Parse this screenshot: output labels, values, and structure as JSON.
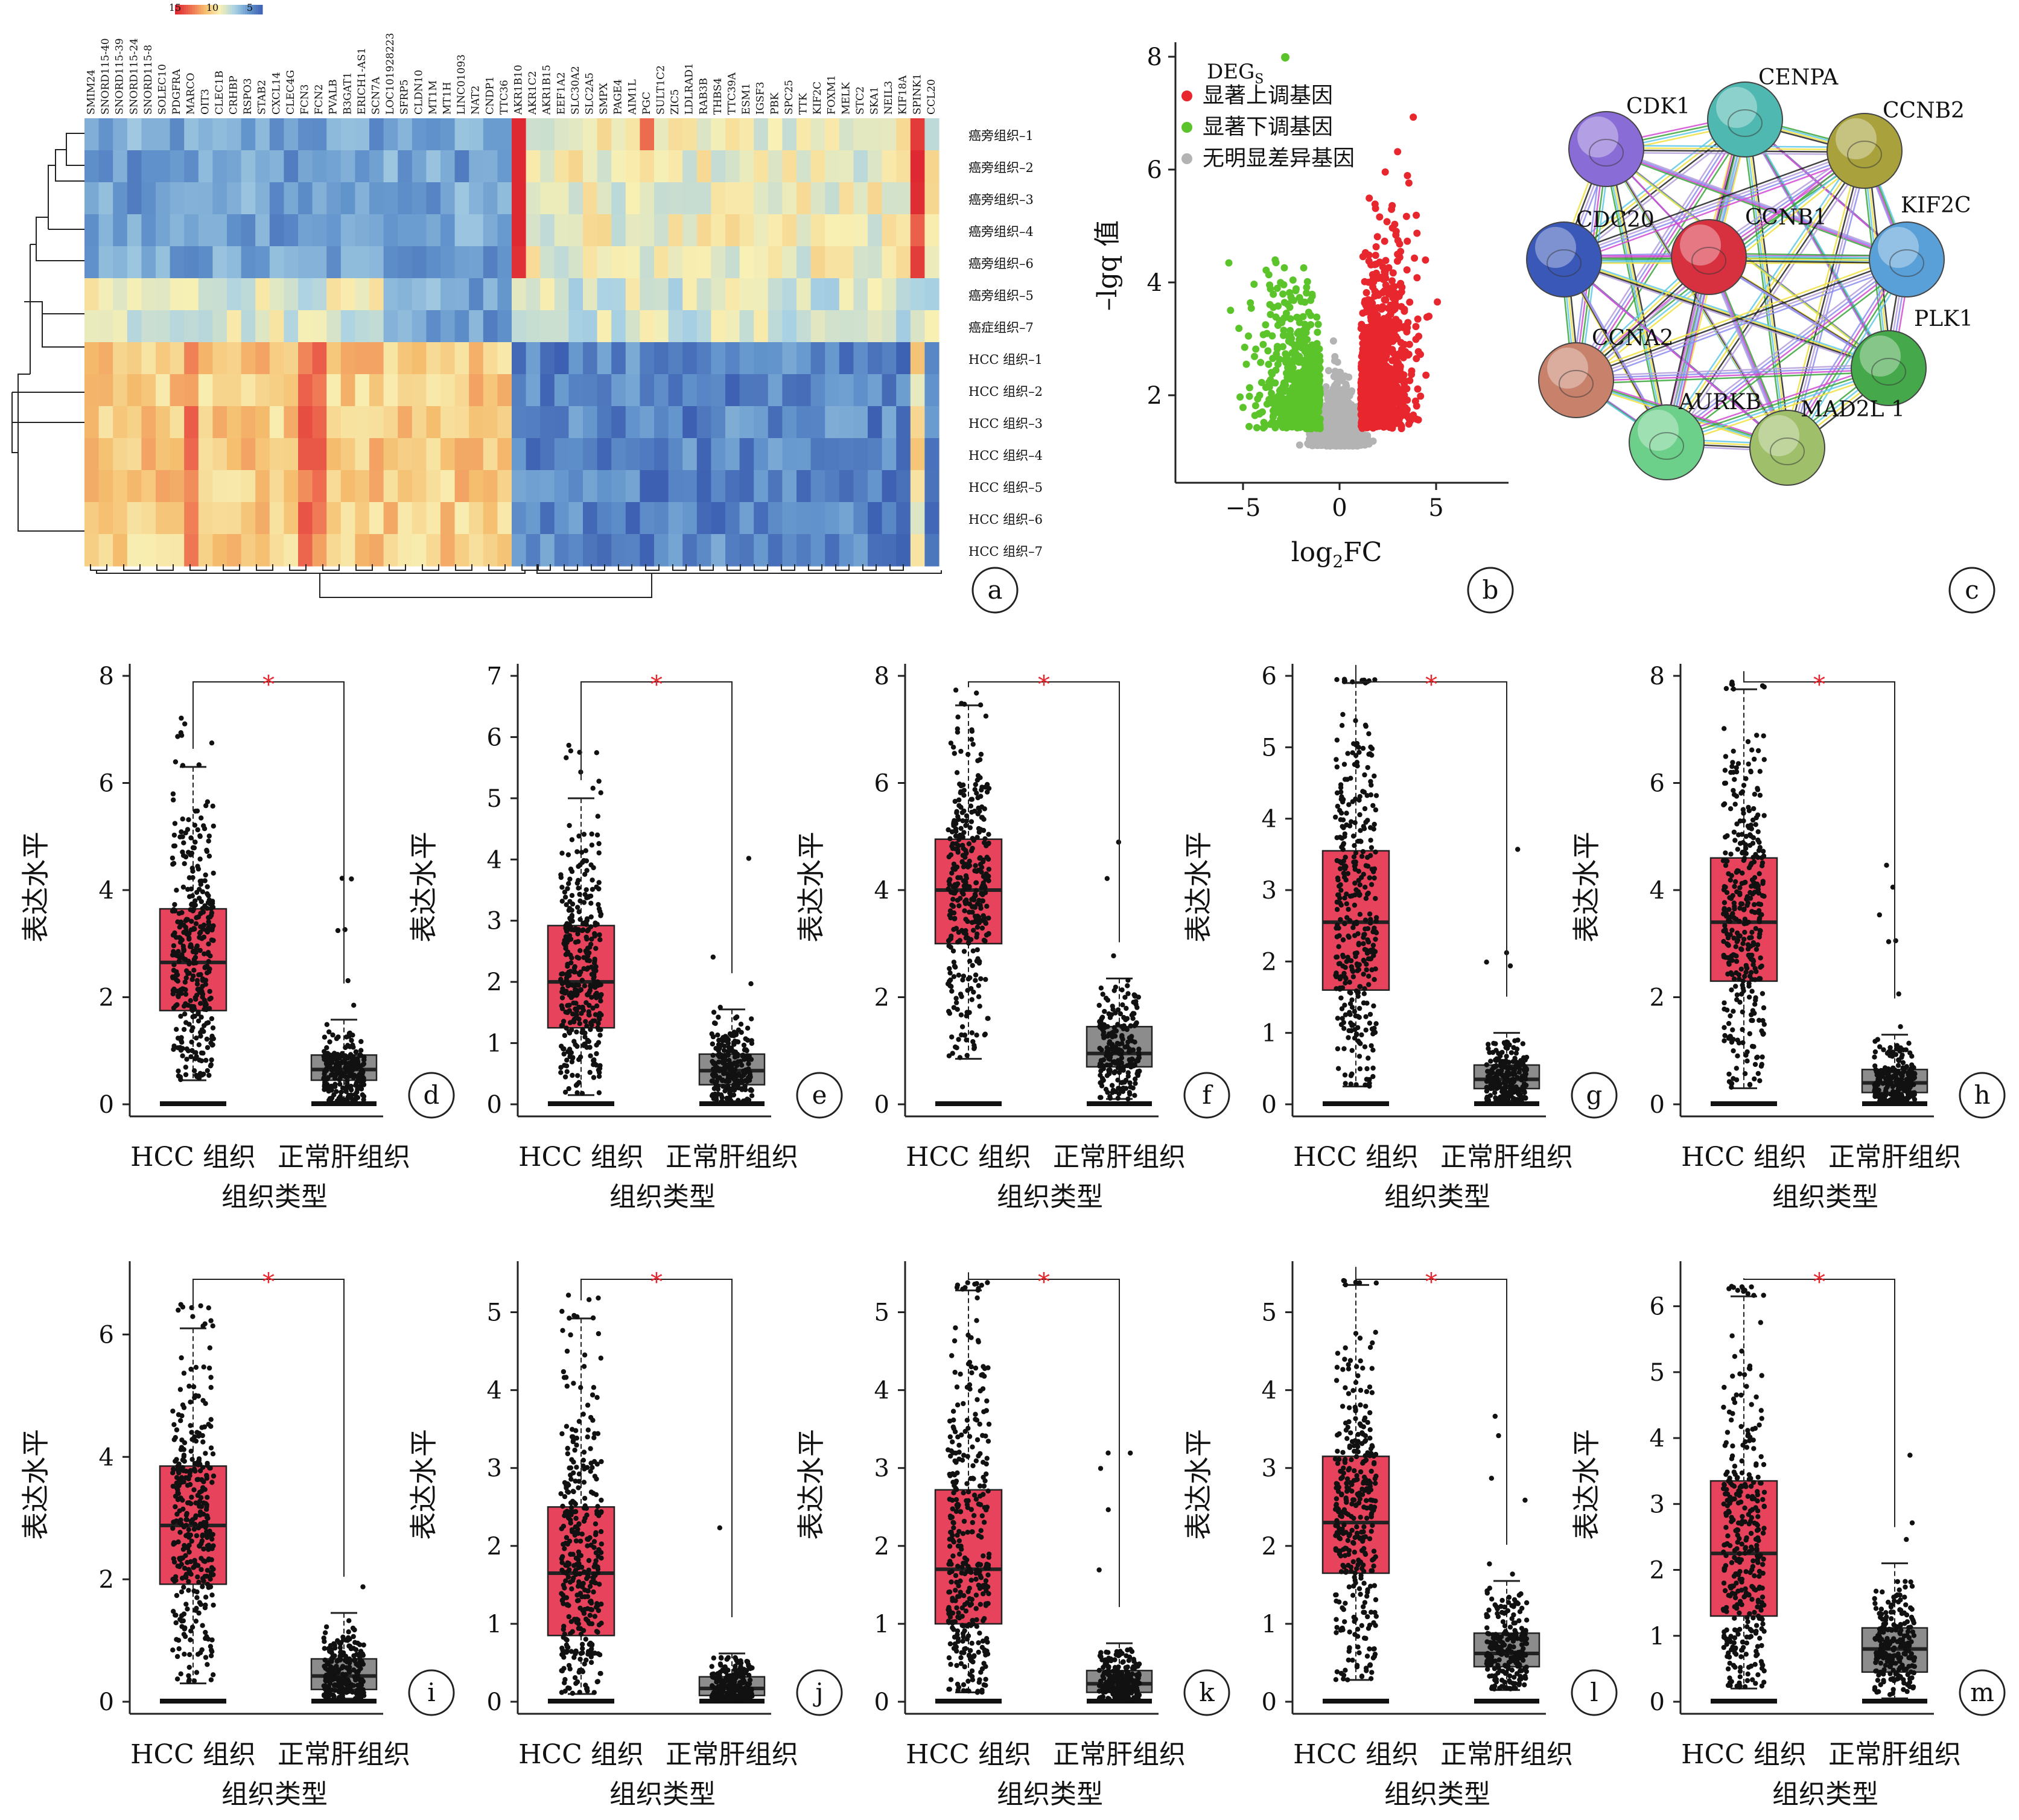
{
  "figure": {
    "panel_letters": [
      "a",
      "b",
      "c",
      "d",
      "e",
      "f",
      "g",
      "h",
      "i",
      "j",
      "k",
      "l",
      "m"
    ]
  },
  "heatmap": {
    "colorbar_ticks": [
      "15",
      "10",
      "5"
    ],
    "genes": [
      "SMIM24",
      "SNORD115-40",
      "SNORD115-39",
      "SNORD115-24",
      "SNORD115-8",
      "SOLEC10",
      "PDGFRA",
      "MARCO",
      "OIT3",
      "CLEC1B",
      "CRHBP",
      "RSPO3",
      "STAB2",
      "CXCL14",
      "CLEC4G",
      "FCN3",
      "FCN2",
      "PVALB",
      "B3GAT1",
      "ERICH1-AS1",
      "SCN7A",
      "LOC101928223",
      "SFRP5",
      "CLDN10",
      "MT1M",
      "MT1H",
      "LINC01093",
      "NAT2",
      "CNDP1",
      "TTC36",
      "AKR1B10",
      "AKR1C2",
      "AKR1B15",
      "EEF1A2",
      "SLC30A2",
      "SLC2A5",
      "SMPX",
      "PAGE4",
      "AIM1L",
      "PGC",
      "SULT1C2",
      "ZIC5",
      "LDLRAD1",
      "RAB3B",
      "THBS4",
      "TTC39A",
      "ESM1",
      "IGSF3",
      "PBK",
      "SPC25",
      "TTK",
      "KIF2C",
      "FOXM1",
      "MELK",
      "STC2",
      "SKA1",
      "NEIL3",
      "KIF18A",
      "SPINK1",
      "CCL20"
    ],
    "samples": [
      "癌旁组织–1",
      "癌旁组织–2",
      "癌旁组织–3",
      "癌旁组织–4",
      "癌旁组织–6",
      "癌旁组织–5",
      "癌症组织–7",
      "HCC 组织–1",
      "HCC 组织–2",
      "HCC 组织–3",
      "HCC 组织–4",
      "HCC 组织–5",
      "HCC 组织–6",
      "HCC 组织–7"
    ]
  },
  "volcano": {
    "legend_title": "DEG",
    "legend_title_sub": "S",
    "legend_items": [
      {
        "label": "显著上调基因",
        "color": "#e8262d"
      },
      {
        "label": "显著下调基因",
        "color": "#5cc42b"
      },
      {
        "label": "无明显差异基因",
        "color": "#b3b3b3"
      }
    ],
    "xlabel_main": "log",
    "xlabel_sub": "2",
    "xlabel_tail": "FC",
    "ylabel": "–lgq 值",
    "x_ticks": [
      "−5",
      "0",
      "5"
    ],
    "y_ticks": [
      "2",
      "4",
      "6",
      "8"
    ]
  },
  "network": {
    "nodes": [
      {
        "name": "CENPA",
        "color": "#4fb8b0"
      },
      {
        "name": "CDK1",
        "color": "#8a6cd6"
      },
      {
        "name": "CCNB2",
        "color": "#a8a13c"
      },
      {
        "name": "CDC20",
        "color": "#3a58b8"
      },
      {
        "name": "CCNB1",
        "color": "#d7303f"
      },
      {
        "name": "KIF2C",
        "color": "#5aa0d8"
      },
      {
        "name": "CCNA2",
        "color": "#c8826b"
      },
      {
        "name": "PLK1",
        "color": "#45a84a"
      },
      {
        "name": "AURKB",
        "color": "#6cd08a"
      },
      {
        "name": "MAD2L 1",
        "color": "#9fbf6a"
      }
    ]
  },
  "boxplots_common": {
    "ylabel": "表达水平",
    "xlabel": "组织类型",
    "categories": [
      "HCC 组织",
      "正常肝组织"
    ],
    "significance": "*",
    "hcc_color": "#e8435c",
    "normal_color": "#8c8c8c"
  },
  "chart_data": [
    {
      "type": "heatmap",
      "rows": 14,
      "cols": 60,
      "colorbar": [
        15,
        10,
        5
      ]
    },
    {
      "type": "scatter",
      "name": "volcano",
      "xlim": [
        -7,
        8
      ],
      "ylim": [
        1,
        8
      ]
    },
    {
      "type": "box",
      "panel": "d",
      "yticks": [
        0,
        2,
        4,
        6,
        8
      ],
      "ymax": 8,
      "HCC": {
        "q1": 1.75,
        "median": 2.65,
        "q3": 3.65,
        "whisker_low": 0.45,
        "whisker_high": 6.3
      },
      "normal": {
        "q1": 0.45,
        "median": 0.65,
        "q3": 0.92,
        "whisker_low": 0.05,
        "whisker_high": 1.58
      }
    },
    {
      "type": "box",
      "panel": "e",
      "yticks": [
        0,
        1,
        2,
        3,
        4,
        5,
        6,
        7
      ],
      "ymax": 7,
      "HCC": {
        "q1": 1.25,
        "median": 2.0,
        "q3": 2.92,
        "whisker_low": 0.15,
        "whisker_high": 5.0
      },
      "normal": {
        "q1": 0.32,
        "median": 0.55,
        "q3": 0.82,
        "whisker_low": 0.05,
        "whisker_high": 1.55
      }
    },
    {
      "type": "box",
      "panel": "f",
      "yticks": [
        0,
        2,
        4,
        6,
        8
      ],
      "ymax": 8,
      "HCC": {
        "q1": 3.0,
        "median": 4.0,
        "q3": 4.95,
        "whisker_low": 0.85,
        "whisker_high": 7.45
      },
      "normal": {
        "q1": 0.7,
        "median": 0.95,
        "q3": 1.45,
        "whisker_low": 0.1,
        "whisker_high": 2.35
      }
    },
    {
      "type": "box",
      "panel": "g",
      "yticks": [
        0,
        1,
        2,
        3,
        4,
        5,
        6
      ],
      "ymax": 6,
      "HCC": {
        "q1": 1.6,
        "median": 2.55,
        "q3": 3.55,
        "whisker_low": 0.25,
        "whisker_high": 5.9
      },
      "normal": {
        "q1": 0.22,
        "median": 0.35,
        "q3": 0.55,
        "whisker_low": 0.05,
        "whisker_high": 1.0
      }
    },
    {
      "type": "box",
      "panel": "h",
      "yticks": [
        0,
        2,
        4,
        6,
        8
      ],
      "ymax": 8,
      "HCC": {
        "q1": 2.3,
        "median": 3.4,
        "q3": 4.6,
        "whisker_low": 0.3,
        "whisker_high": 7.75
      },
      "normal": {
        "q1": 0.22,
        "median": 0.4,
        "q3": 0.65,
        "whisker_low": 0.05,
        "whisker_high": 1.3
      }
    },
    {
      "type": "box",
      "panel": "i",
      "yticks": [
        0,
        2,
        4,
        6
      ],
      "ymax": 7,
      "HCC": {
        "q1": 1.92,
        "median": 2.88,
        "q3": 3.85,
        "whisker_low": 0.3,
        "whisker_high": 6.1
      },
      "normal": {
        "q1": 0.2,
        "median": 0.42,
        "q3": 0.7,
        "whisker_low": 0.05,
        "whisker_high": 1.45
      }
    },
    {
      "type": "box",
      "panel": "j",
      "yticks": [
        0,
        1,
        2,
        3,
        4,
        5
      ],
      "ymax": 5.5,
      "HCC": {
        "q1": 0.85,
        "median": 1.65,
        "q3": 2.5,
        "whisker_low": 0.1,
        "whisker_high": 4.92
      },
      "normal": {
        "q1": 0.08,
        "median": 0.17,
        "q3": 0.32,
        "whisker_low": 0.02,
        "whisker_high": 0.62
      }
    },
    {
      "type": "box",
      "panel": "k",
      "yticks": [
        0,
        1,
        2,
        3,
        4,
        5
      ],
      "ymax": 5.5,
      "HCC": {
        "q1": 1.0,
        "median": 1.7,
        "q3": 2.72,
        "whisker_low": 0.12,
        "whisker_high": 5.28
      },
      "normal": {
        "q1": 0.12,
        "median": 0.23,
        "q3": 0.4,
        "whisker_low": 0.02,
        "whisker_high": 0.75
      }
    },
    {
      "type": "box",
      "panel": "l",
      "yticks": [
        0,
        1,
        2,
        3,
        4,
        5
      ],
      "ymax": 5.5,
      "HCC": {
        "q1": 1.65,
        "median": 2.3,
        "q3": 3.15,
        "whisker_low": 0.28,
        "whisker_high": 5.35
      },
      "normal": {
        "q1": 0.45,
        "median": 0.62,
        "q3": 0.88,
        "whisker_low": 0.15,
        "whisker_high": 1.55
      }
    },
    {
      "type": "box",
      "panel": "m",
      "yticks": [
        0,
        1,
        2,
        3,
        4,
        5,
        6
      ],
      "ymax": 6.5,
      "HCC": {
        "q1": 1.3,
        "median": 2.25,
        "q3": 3.35,
        "whisker_low": 0.2,
        "whisker_high": 6.15
      },
      "normal": {
        "q1": 0.45,
        "median": 0.8,
        "q3": 1.12,
        "whisker_low": 0.05,
        "whisker_high": 2.1
      }
    }
  ]
}
